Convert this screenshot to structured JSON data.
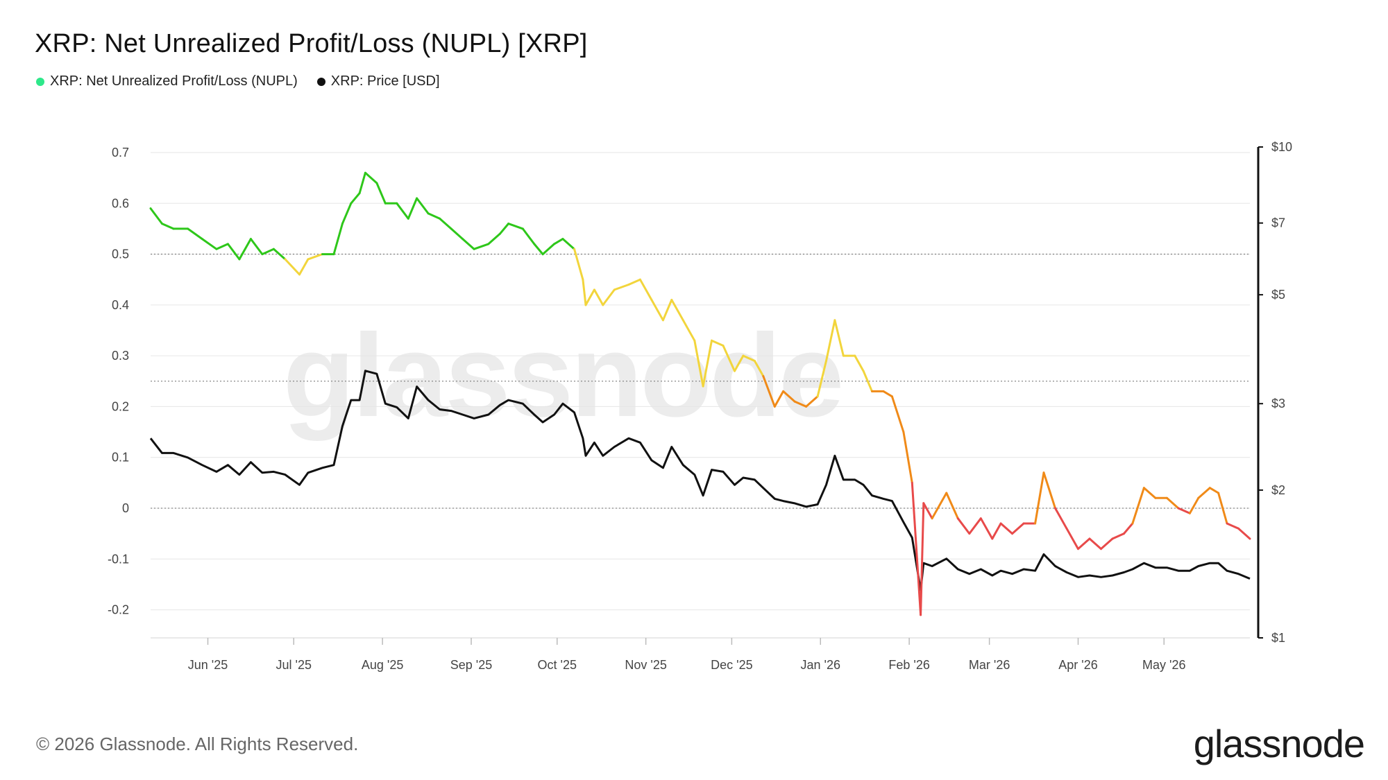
{
  "title": "XRP: Net Unrealized Profit/Loss (NUPL) [XRP]",
  "legend": [
    {
      "label": "XRP: Net Unrealized Profit/Loss (NUPL)",
      "color": "#2ee88a"
    },
    {
      "label": "XRP: Price [USD]",
      "color": "#111111"
    }
  ],
  "watermark": "glassnode",
  "footer": {
    "copyright": "© 2026 Glassnode. All Rights Reserved.",
    "brand": "glassnode"
  },
  "colors": {
    "nupl_green": "#2ec71a",
    "nupl_yellow": "#f2d53c",
    "nupl_orange": "#f08a18",
    "nupl_red": "#e84a4a",
    "price": "#111111",
    "grid": "#e6e6e6"
  },
  "chart_data": {
    "type": "line",
    "date_range": [
      "2025-05-12",
      "2026-05-31"
    ],
    "x_tick_labels": [
      "Jun '25",
      "Jul '25",
      "Aug '25",
      "Sep '25",
      "Oct '25",
      "Nov '25",
      "Dec '25",
      "Jan '26",
      "Feb '26",
      "Mar '26",
      "Apr '26",
      "May '26"
    ],
    "x_tick_dates": [
      "2025-06-01",
      "2025-07-01",
      "2025-08-01",
      "2025-09-01",
      "2025-10-01",
      "2025-11-01",
      "2025-12-01",
      "2026-01-01",
      "2026-02-01",
      "2026-03-01",
      "2026-04-01",
      "2026-05-01"
    ],
    "y_left": {
      "ticks": [
        "0.7",
        "0.6",
        "0.5",
        "0.4",
        "0.3",
        "0.2",
        "0.1",
        "0",
        "-0.1",
        "-0.2"
      ],
      "min": -0.25,
      "max": 0.7
    },
    "y_right": {
      "scale": "log",
      "ticks": [
        "$10",
        "$7",
        "$5",
        "$3",
        "$2",
        "$1"
      ],
      "tick_values": [
        10,
        7,
        5,
        3,
        2,
        1
      ],
      "min": 1,
      "max": 10
    },
    "reference_lines": [
      0.5,
      0.25,
      0
    ],
    "nupl_thresholds": {
      "green_above": 0.5,
      "yellow_above": 0.25,
      "orange_above": 0,
      "red_below": 0
    },
    "series": [
      {
        "name": "XRP: Net Unrealized Profit/Loss (NUPL)",
        "axis": "left",
        "points": [
          [
            "2025-05-12",
            0.59
          ],
          [
            "2025-05-16",
            0.56
          ],
          [
            "2025-05-20",
            0.55
          ],
          [
            "2025-05-25",
            0.55
          ],
          [
            "2025-05-30",
            0.53
          ],
          [
            "2025-06-04",
            0.51
          ],
          [
            "2025-06-08",
            0.52
          ],
          [
            "2025-06-12",
            0.49
          ],
          [
            "2025-06-16",
            0.53
          ],
          [
            "2025-06-20",
            0.5
          ],
          [
            "2025-06-24",
            0.51
          ],
          [
            "2025-06-28",
            0.49
          ],
          [
            "2025-07-03",
            0.46
          ],
          [
            "2025-07-06",
            0.49
          ],
          [
            "2025-07-11",
            0.5
          ],
          [
            "2025-07-15",
            0.5
          ],
          [
            "2025-07-18",
            0.56
          ],
          [
            "2025-07-21",
            0.6
          ],
          [
            "2025-07-24",
            0.62
          ],
          [
            "2025-07-26",
            0.66
          ],
          [
            "2025-07-30",
            0.64
          ],
          [
            "2025-08-02",
            0.6
          ],
          [
            "2025-08-06",
            0.6
          ],
          [
            "2025-08-10",
            0.57
          ],
          [
            "2025-08-13",
            0.61
          ],
          [
            "2025-08-17",
            0.58
          ],
          [
            "2025-08-21",
            0.57
          ],
          [
            "2025-08-25",
            0.55
          ],
          [
            "2025-08-29",
            0.53
          ],
          [
            "2025-09-02",
            0.51
          ],
          [
            "2025-09-07",
            0.52
          ],
          [
            "2025-09-11",
            0.54
          ],
          [
            "2025-09-14",
            0.56
          ],
          [
            "2025-09-19",
            0.55
          ],
          [
            "2025-09-23",
            0.52
          ],
          [
            "2025-09-26",
            0.5
          ],
          [
            "2025-09-30",
            0.52
          ],
          [
            "2025-10-03",
            0.53
          ],
          [
            "2025-10-07",
            0.51
          ],
          [
            "2025-10-10",
            0.45
          ],
          [
            "2025-10-11",
            0.4
          ],
          [
            "2025-10-14",
            0.43
          ],
          [
            "2025-10-17",
            0.4
          ],
          [
            "2025-10-21",
            0.43
          ],
          [
            "2025-10-26",
            0.44
          ],
          [
            "2025-10-30",
            0.45
          ],
          [
            "2025-11-03",
            0.41
          ],
          [
            "2025-11-07",
            0.37
          ],
          [
            "2025-11-10",
            0.41
          ],
          [
            "2025-11-14",
            0.37
          ],
          [
            "2025-11-18",
            0.33
          ],
          [
            "2025-11-21",
            0.24
          ],
          [
            "2025-11-24",
            0.33
          ],
          [
            "2025-11-28",
            0.32
          ],
          [
            "2025-12-02",
            0.27
          ],
          [
            "2025-12-05",
            0.3
          ],
          [
            "2025-12-09",
            0.29
          ],
          [
            "2025-12-12",
            0.26
          ],
          [
            "2025-12-16",
            0.2
          ],
          [
            "2025-12-19",
            0.23
          ],
          [
            "2025-12-23",
            0.21
          ],
          [
            "2025-12-27",
            0.2
          ],
          [
            "2025-12-31",
            0.22
          ],
          [
            "2026-01-03",
            0.29
          ],
          [
            "2026-01-06",
            0.37
          ],
          [
            "2026-01-09",
            0.3
          ],
          [
            "2026-01-13",
            0.3
          ],
          [
            "2026-01-16",
            0.27
          ],
          [
            "2026-01-19",
            0.23
          ],
          [
            "2026-01-23",
            0.23
          ],
          [
            "2026-01-26",
            0.22
          ],
          [
            "2026-01-30",
            0.15
          ],
          [
            "2026-02-02",
            0.05
          ],
          [
            "2026-02-05",
            -0.21
          ],
          [
            "2026-02-06",
            0.01
          ],
          [
            "2026-02-09",
            -0.02
          ],
          [
            "2026-02-14",
            0.03
          ],
          [
            "2026-02-18",
            -0.02
          ],
          [
            "2026-02-22",
            -0.05
          ],
          [
            "2026-02-26",
            -0.02
          ],
          [
            "2026-03-02",
            -0.06
          ],
          [
            "2026-03-05",
            -0.03
          ],
          [
            "2026-03-09",
            -0.05
          ],
          [
            "2026-03-13",
            -0.03
          ],
          [
            "2026-03-17",
            -0.03
          ],
          [
            "2026-03-20",
            0.07
          ],
          [
            "2026-03-24",
            0.0
          ],
          [
            "2026-03-28",
            -0.04
          ],
          [
            "2026-04-01",
            -0.08
          ],
          [
            "2026-04-05",
            -0.06
          ],
          [
            "2026-04-09",
            -0.08
          ],
          [
            "2026-04-13",
            -0.06
          ],
          [
            "2026-04-17",
            -0.05
          ],
          [
            "2026-04-20",
            -0.03
          ],
          [
            "2026-04-24",
            0.04
          ],
          [
            "2026-04-28",
            0.02
          ],
          [
            "2026-05-02",
            0.02
          ],
          [
            "2026-05-06",
            0.0
          ],
          [
            "2026-05-10",
            -0.01
          ],
          [
            "2026-05-13",
            0.02
          ],
          [
            "2026-05-17",
            0.04
          ],
          [
            "2026-05-20",
            0.03
          ],
          [
            "2026-05-23",
            -0.03
          ],
          [
            "2026-05-27",
            -0.04
          ],
          [
            "2026-05-31",
            -0.06
          ]
        ]
      },
      {
        "name": "XRP: Price [USD]",
        "axis": "right",
        "points": [
          [
            "2025-05-12",
            2.55
          ],
          [
            "2025-05-16",
            2.38
          ],
          [
            "2025-05-20",
            2.38
          ],
          [
            "2025-05-25",
            2.33
          ],
          [
            "2025-05-30",
            2.25
          ],
          [
            "2025-06-04",
            2.18
          ],
          [
            "2025-06-08",
            2.25
          ],
          [
            "2025-06-12",
            2.15
          ],
          [
            "2025-06-16",
            2.28
          ],
          [
            "2025-06-20",
            2.17
          ],
          [
            "2025-06-24",
            2.18
          ],
          [
            "2025-06-28",
            2.15
          ],
          [
            "2025-07-03",
            2.05
          ],
          [
            "2025-07-06",
            2.17
          ],
          [
            "2025-07-11",
            2.22
          ],
          [
            "2025-07-15",
            2.25
          ],
          [
            "2025-07-18",
            2.7
          ],
          [
            "2025-07-21",
            3.05
          ],
          [
            "2025-07-24",
            3.05
          ],
          [
            "2025-07-26",
            3.5
          ],
          [
            "2025-07-30",
            3.45
          ],
          [
            "2025-08-02",
            3.0
          ],
          [
            "2025-08-06",
            2.95
          ],
          [
            "2025-08-10",
            2.8
          ],
          [
            "2025-08-13",
            3.25
          ],
          [
            "2025-08-17",
            3.05
          ],
          [
            "2025-08-21",
            2.92
          ],
          [
            "2025-08-25",
            2.9
          ],
          [
            "2025-08-29",
            2.85
          ],
          [
            "2025-09-02",
            2.8
          ],
          [
            "2025-09-07",
            2.85
          ],
          [
            "2025-09-11",
            2.98
          ],
          [
            "2025-09-14",
            3.05
          ],
          [
            "2025-09-19",
            3.0
          ],
          [
            "2025-09-23",
            2.85
          ],
          [
            "2025-09-26",
            2.75
          ],
          [
            "2025-09-30",
            2.85
          ],
          [
            "2025-10-03",
            3.0
          ],
          [
            "2025-10-07",
            2.88
          ],
          [
            "2025-10-10",
            2.55
          ],
          [
            "2025-10-11",
            2.35
          ],
          [
            "2025-10-14",
            2.5
          ],
          [
            "2025-10-17",
            2.35
          ],
          [
            "2025-10-21",
            2.45
          ],
          [
            "2025-10-26",
            2.55
          ],
          [
            "2025-10-30",
            2.5
          ],
          [
            "2025-11-03",
            2.3
          ],
          [
            "2025-11-07",
            2.22
          ],
          [
            "2025-11-10",
            2.45
          ],
          [
            "2025-11-14",
            2.25
          ],
          [
            "2025-11-18",
            2.15
          ],
          [
            "2025-11-21",
            1.95
          ],
          [
            "2025-11-24",
            2.2
          ],
          [
            "2025-11-28",
            2.18
          ],
          [
            "2025-12-02",
            2.05
          ],
          [
            "2025-12-05",
            2.12
          ],
          [
            "2025-12-09",
            2.1
          ],
          [
            "2025-12-12",
            2.02
          ],
          [
            "2025-12-16",
            1.92
          ],
          [
            "2025-12-19",
            1.9
          ],
          [
            "2025-12-23",
            1.88
          ],
          [
            "2025-12-27",
            1.85
          ],
          [
            "2025-12-31",
            1.87
          ],
          [
            "2026-01-03",
            2.05
          ],
          [
            "2026-01-06",
            2.35
          ],
          [
            "2026-01-09",
            2.1
          ],
          [
            "2026-01-13",
            2.1
          ],
          [
            "2026-01-16",
            2.05
          ],
          [
            "2026-01-19",
            1.95
          ],
          [
            "2026-01-23",
            1.92
          ],
          [
            "2026-01-26",
            1.9
          ],
          [
            "2026-01-30",
            1.72
          ],
          [
            "2026-02-02",
            1.6
          ],
          [
            "2026-02-05",
            1.25
          ],
          [
            "2026-02-06",
            1.42
          ],
          [
            "2026-02-09",
            1.4
          ],
          [
            "2026-02-14",
            1.45
          ],
          [
            "2026-02-18",
            1.38
          ],
          [
            "2026-02-22",
            1.35
          ],
          [
            "2026-02-26",
            1.38
          ],
          [
            "2026-03-02",
            1.34
          ],
          [
            "2026-03-05",
            1.37
          ],
          [
            "2026-03-09",
            1.35
          ],
          [
            "2026-03-13",
            1.38
          ],
          [
            "2026-03-17",
            1.37
          ],
          [
            "2026-03-20",
            1.48
          ],
          [
            "2026-03-24",
            1.4
          ],
          [
            "2026-03-28",
            1.36
          ],
          [
            "2026-04-01",
            1.33
          ],
          [
            "2026-04-05",
            1.34
          ],
          [
            "2026-04-09",
            1.33
          ],
          [
            "2026-04-13",
            1.34
          ],
          [
            "2026-04-17",
            1.36
          ],
          [
            "2026-04-20",
            1.38
          ],
          [
            "2026-04-24",
            1.42
          ],
          [
            "2026-04-28",
            1.39
          ],
          [
            "2026-05-02",
            1.39
          ],
          [
            "2026-05-06",
            1.37
          ],
          [
            "2026-05-10",
            1.37
          ],
          [
            "2026-05-13",
            1.4
          ],
          [
            "2026-05-17",
            1.42
          ],
          [
            "2026-05-20",
            1.42
          ],
          [
            "2026-05-23",
            1.37
          ],
          [
            "2026-05-27",
            1.35
          ],
          [
            "2026-05-31",
            1.32
          ]
        ]
      }
    ]
  }
}
